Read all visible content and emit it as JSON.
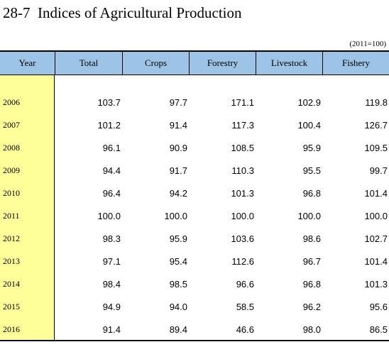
{
  "title": "28-7  Indices of Agricultural Production",
  "unit_note": "(2011=100)",
  "columns": [
    "Year",
    "Total",
    "Crops",
    "Forestry",
    "Livestock",
    "Fishery"
  ],
  "rows": [
    {
      "year": "2006",
      "total": "103.7",
      "crops": "97.7",
      "forestry": "171.1",
      "livestock": "102.9",
      "fishery": "119.8"
    },
    {
      "year": "2007",
      "total": "101.2",
      "crops": "91.4",
      "forestry": "117.3",
      "livestock": "100.4",
      "fishery": "126.7"
    },
    {
      "year": "2008",
      "total": "96.1",
      "crops": "90.9",
      "forestry": "108.5",
      "livestock": "95.9",
      "fishery": "109.5"
    },
    {
      "year": "2009",
      "total": "94.4",
      "crops": "91.7",
      "forestry": "110.3",
      "livestock": "95.5",
      "fishery": "99.7"
    },
    {
      "year": "2010",
      "total": "96.4",
      "crops": "94.2",
      "forestry": "101.3",
      "livestock": "96.8",
      "fishery": "101.4"
    },
    {
      "year": "2011",
      "total": "100.0",
      "crops": "100.0",
      "forestry": "100.0",
      "livestock": "100.0",
      "fishery": "100.0"
    },
    {
      "year": "2012",
      "total": "98.3",
      "crops": "95.9",
      "forestry": "103.6",
      "livestock": "98.6",
      "fishery": "102.7"
    },
    {
      "year": "2013",
      "total": "97.1",
      "crops": "95.4",
      "forestry": "112.6",
      "livestock": "96.7",
      "fishery": "101.4"
    },
    {
      "year": "2014",
      "total": "98.4",
      "crops": "98.5",
      "forestry": "96.6",
      "livestock": "96.8",
      "fishery": "101.3"
    },
    {
      "year": "2015",
      "total": "94.9",
      "crops": "94.0",
      "forestry": "58.5",
      "livestock": "96.2",
      "fishery": "95.6"
    },
    {
      "year": "2016",
      "total": "91.4",
      "crops": "89.4",
      "forestry": "46.6",
      "livestock": "98.0",
      "fishery": "86.5"
    }
  ],
  "colors": {
    "header_bg": "#9dc3e6",
    "year_col_bg": "#ffff99"
  }
}
